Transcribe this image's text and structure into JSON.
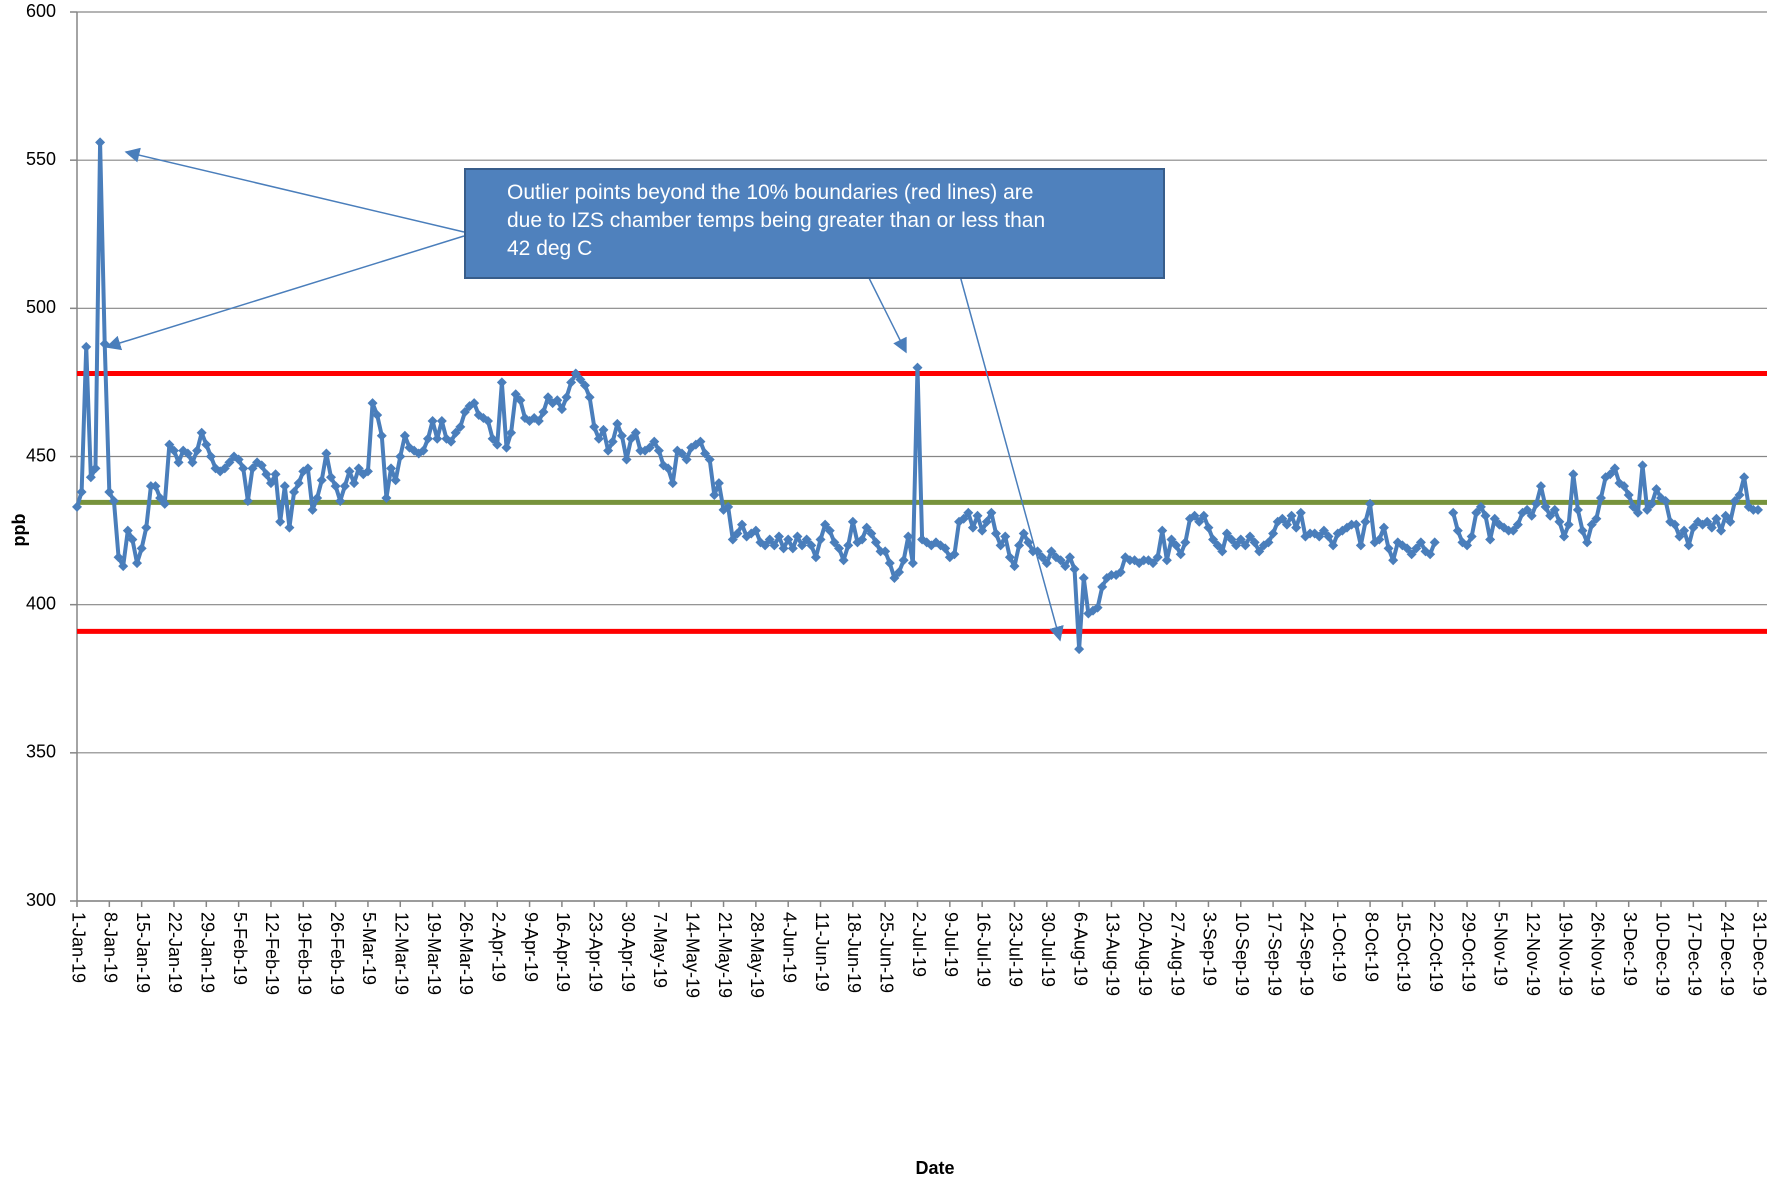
{
  "chart_data": {
    "type": "line",
    "x_label": "Date",
    "y_label": "ppb",
    "annotation": "Outlier points beyond the 10% boundaries (red lines) are due to IZS chamber temps being greater than or less than 42 deg C",
    "ylim": [
      300,
      600
    ],
    "yticks": [
      300,
      350,
      400,
      450,
      500,
      550,
      600
    ],
    "grid": true,
    "reference_lines": [
      {
        "value": 478,
        "color": "#ff0000"
      },
      {
        "value": 434.5,
        "color": "#77933c"
      },
      {
        "value": 391,
        "color": "#ff0000"
      }
    ],
    "categories": [
      "1-Jan-19",
      null,
      null,
      null,
      null,
      null,
      null,
      "8-Jan-19",
      null,
      null,
      null,
      null,
      null,
      null,
      "15-Jan-19",
      null,
      null,
      null,
      null,
      null,
      null,
      "22-Jan-19",
      null,
      null,
      null,
      null,
      null,
      null,
      "29-Jan-19",
      null,
      null,
      null,
      null,
      null,
      null,
      "5-Feb-19",
      null,
      null,
      null,
      null,
      null,
      null,
      "12-Feb-19",
      null,
      null,
      null,
      null,
      null,
      null,
      "19-Feb-19",
      null,
      null,
      null,
      null,
      null,
      null,
      "26-Feb-19",
      null,
      null,
      null,
      null,
      null,
      null,
      "5-Mar-19",
      null,
      null,
      null,
      null,
      null,
      null,
      "12-Mar-19",
      null,
      null,
      null,
      null,
      null,
      null,
      "19-Mar-19",
      null,
      null,
      null,
      null,
      null,
      null,
      "26-Mar-19",
      null,
      null,
      null,
      null,
      null,
      null,
      "2-Apr-19",
      null,
      null,
      null,
      null,
      null,
      null,
      "9-Apr-19",
      null,
      null,
      null,
      null,
      null,
      null,
      "16-Apr-19",
      null,
      null,
      null,
      null,
      null,
      null,
      "23-Apr-19",
      null,
      null,
      null,
      null,
      null,
      null,
      "30-Apr-19",
      null,
      null,
      null,
      null,
      null,
      null,
      "7-May-19",
      null,
      null,
      null,
      null,
      null,
      null,
      "14-May-19",
      null,
      null,
      null,
      null,
      null,
      null,
      "21-May-19",
      null,
      null,
      null,
      null,
      null,
      null,
      "28-May-19",
      null,
      null,
      null,
      null,
      null,
      null,
      "4-Jun-19",
      null,
      null,
      null,
      null,
      null,
      null,
      "11-Jun-19",
      null,
      null,
      null,
      null,
      null,
      null,
      "18-Jun-19",
      null,
      null,
      null,
      null,
      null,
      null,
      "25-Jun-19",
      null,
      null,
      null,
      null,
      null,
      null,
      "2-Jul-19",
      null,
      null,
      null,
      null,
      null,
      null,
      "9-Jul-19",
      null,
      null,
      null,
      null,
      null,
      null,
      "16-Jul-19",
      null,
      null,
      null,
      null,
      null,
      null,
      "23-Jul-19",
      null,
      null,
      null,
      null,
      null,
      null,
      "30-Jul-19",
      null,
      null,
      null,
      null,
      null,
      null,
      "6-Aug-19",
      null,
      null,
      null,
      null,
      null,
      null,
      "13-Aug-19",
      null,
      null,
      null,
      null,
      null,
      null,
      "20-Aug-19",
      null,
      null,
      null,
      null,
      null,
      null,
      "27-Aug-19",
      null,
      null,
      null,
      null,
      null,
      null,
      "3-Sep-19",
      null,
      null,
      null,
      null,
      null,
      null,
      "10-Sep-19",
      null,
      null,
      null,
      null,
      null,
      null,
      "17-Sep-19",
      null,
      null,
      null,
      null,
      null,
      null,
      "24-Sep-19",
      null,
      null,
      null,
      null,
      null,
      null,
      "1-Oct-19",
      null,
      null,
      null,
      null,
      null,
      null,
      "8-Oct-19",
      null,
      null,
      null,
      null,
      null,
      null,
      "15-Oct-19",
      null,
      null,
      null,
      null,
      null,
      null,
      "22-Oct-19",
      null,
      null,
      null,
      null,
      null,
      null,
      "29-Oct-19",
      null,
      null,
      null,
      null,
      null,
      null,
      "5-Nov-19",
      null,
      null,
      null,
      null,
      null,
      null,
      "12-Nov-19",
      null,
      null,
      null,
      null,
      null,
      null,
      "19-Nov-19",
      null,
      null,
      null,
      null,
      null,
      null,
      "26-Nov-19",
      null,
      null,
      null,
      null,
      null,
      null,
      "3-Dec-19",
      null,
      null,
      null,
      null,
      null,
      null,
      "10-Dec-19",
      null,
      null,
      null,
      null,
      null,
      null,
      "17-Dec-19",
      null,
      null,
      null,
      null,
      null,
      null,
      "24-Dec-19",
      null,
      null,
      null,
      null,
      null,
      null,
      "31-Dec-19"
    ],
    "series": [
      {
        "color": "#4a7ebb",
        "values": [
          433,
          438,
          487,
          443,
          446,
          556,
          488,
          438,
          435,
          416,
          413,
          425,
          422,
          414,
          419,
          426,
          440,
          440,
          436,
          434,
          454,
          452,
          448,
          452,
          451,
          448,
          452,
          458,
          454,
          450,
          446,
          445,
          446,
          448,
          450,
          449,
          446,
          435,
          446,
          448,
          447,
          444,
          441,
          444,
          428,
          440,
          426,
          438,
          441,
          445,
          446,
          432,
          436,
          442,
          451,
          443,
          440,
          435,
          440,
          445,
          441,
          446,
          444,
          445,
          468,
          464,
          457,
          436,
          446,
          442,
          450,
          457,
          453,
          452,
          451,
          452,
          456,
          462,
          456,
          462,
          456,
          455,
          458,
          460,
          465,
          467,
          468,
          464,
          463,
          462,
          456,
          454,
          475,
          453,
          458,
          471,
          469,
          463,
          462,
          463,
          462,
          465,
          470,
          468,
          469,
          466,
          470,
          475,
          478,
          476,
          474,
          470,
          460,
          456,
          459,
          452,
          455,
          461,
          457,
          449,
          456,
          458,
          452,
          452,
          453,
          455,
          452,
          447,
          446,
          441,
          452,
          451,
          449,
          453,
          454,
          455,
          451,
          449,
          437,
          441,
          432,
          433,
          422,
          424,
          427,
          423,
          424,
          425,
          421,
          420,
          422,
          420,
          423,
          419,
          422,
          419,
          423,
          420,
          422,
          420,
          416,
          422,
          427,
          425,
          421,
          419,
          415,
          420,
          428,
          421,
          422,
          426,
          424,
          421,
          418,
          418,
          414,
          409,
          411,
          415,
          423,
          414,
          480,
          422,
          421,
          420,
          421,
          420,
          419,
          416,
          417,
          428,
          429,
          431,
          426,
          430,
          425,
          428,
          431,
          424,
          420,
          423,
          416,
          413,
          420,
          424,
          421,
          418,
          418,
          416,
          414,
          418,
          416,
          415,
          413,
          416,
          412,
          385,
          409,
          397,
          398,
          399,
          406,
          409,
          410,
          410,
          411,
          416,
          415,
          415,
          414,
          415,
          415,
          414,
          416,
          425,
          415,
          422,
          420,
          417,
          421,
          429,
          430,
          428,
          430,
          426,
          422,
          420,
          418,
          424,
          422,
          420,
          422,
          420,
          423,
          421,
          418,
          420,
          421,
          424,
          428,
          429,
          427,
          430,
          426,
          431,
          423,
          424,
          424,
          423,
          425,
          423,
          420,
          424,
          425,
          426,
          427,
          427,
          420,
          428,
          434,
          421,
          422,
          426,
          419,
          415,
          421,
          420,
          419,
          417,
          419,
          421,
          418,
          417,
          421,
          null,
          null,
          null,
          431,
          425,
          421,
          420,
          423,
          431,
          433,
          430,
          422,
          429,
          427,
          426,
          425,
          425,
          427,
          431,
          432,
          430,
          434,
          440,
          433,
          430,
          432,
          428,
          423,
          427,
          444,
          432,
          425,
          421,
          427,
          429,
          436,
          443,
          444,
          446,
          441,
          440,
          437,
          433,
          431,
          447,
          432,
          434,
          439,
          436,
          435,
          428,
          427,
          423,
          425,
          420,
          426,
          428,
          427,
          428,
          426,
          429,
          425,
          430,
          428,
          435,
          437,
          443,
          433,
          432,
          432
        ]
      }
    ]
  }
}
